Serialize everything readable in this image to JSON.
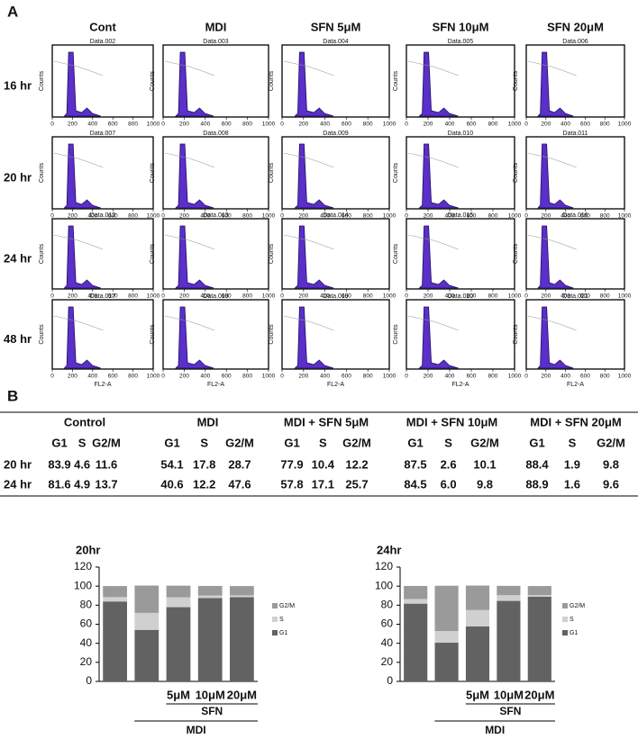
{
  "panel_a": {
    "label": "A",
    "columns": [
      "Cont",
      "MDI",
      "SFN 5μM",
      "SFN 10μM",
      "SFN 20μM"
    ],
    "rows": [
      "16 hr",
      "20 hr",
      "24 hr",
      "48 hr"
    ],
    "samples": [
      [
        "Data.002",
        "Data.003",
        "Data.004",
        "Data.005",
        "Data.006"
      ],
      [
        "Data.007",
        "Data.008",
        "Data.009",
        "Data.010",
        "Data.011"
      ],
      [
        "Data.012",
        "Data.013",
        "Data.014",
        "Data.015",
        "Data.016"
      ],
      [
        "Data.017",
        "Data.018",
        "Data.019",
        "Data.020",
        "Data.021"
      ]
    ],
    "y_label": "Counts",
    "x_label": "FL2-A",
    "xticks": [
      0,
      200,
      400,
      600,
      800,
      1000
    ]
  },
  "panel_b": {
    "label": "B",
    "groups": [
      "Control",
      "MDI",
      "MDI + SFN 5μM",
      "MDI + SFN 10μM",
      "MDI + SFN 20μM"
    ],
    "subheaders": [
      "G1",
      "S",
      "G2/M"
    ],
    "rows": [
      {
        "label": "20 hr",
        "cells": [
          "83.9",
          "4.6",
          "11.6",
          "54.1",
          "17.8",
          "28.7",
          "77.9",
          "10.4",
          "12.2",
          "87.5",
          "2.6",
          "10.1",
          "88.4",
          "1.9",
          "9.8"
        ]
      },
      {
        "label": "24 hr",
        "cells": [
          "81.6",
          "4.9",
          "13.7",
          "40.6",
          "12.2",
          "47.6",
          "57.8",
          "17.1",
          "25.7",
          "84.5",
          "6.0",
          "9.8",
          "88.9",
          "1.6",
          "9.6"
        ]
      }
    ]
  },
  "chart_data": [
    {
      "type": "stacked_bar",
      "title": "20hr",
      "categories": [
        null,
        null,
        "5μM",
        "10μM",
        "20μM"
      ],
      "group_labels": [
        "SFN",
        "MDI"
      ],
      "series": [
        {
          "name": "G1",
          "color": "#626262",
          "values": [
            83.9,
            54.1,
            77.9,
            87.5,
            88.4
          ]
        },
        {
          "name": "S",
          "color": "#d0d0d0",
          "values": [
            4.6,
            17.8,
            10.4,
            2.6,
            1.9
          ]
        },
        {
          "name": "G2/M",
          "color": "#9a9a9a",
          "values": [
            11.6,
            28.7,
            12.2,
            10.1,
            9.8
          ]
        }
      ],
      "ylim": [
        0,
        120
      ],
      "yticks": [
        0,
        20,
        40,
        60,
        80,
        100,
        120
      ]
    },
    {
      "type": "stacked_bar",
      "title": "24hr",
      "categories": [
        null,
        null,
        "5μM",
        "10μM",
        "20μM"
      ],
      "group_labels": [
        "SFN",
        "MDI"
      ],
      "series": [
        {
          "name": "G1",
          "color": "#626262",
          "values": [
            81.6,
            40.6,
            57.8,
            84.5,
            88.9
          ]
        },
        {
          "name": "S",
          "color": "#d0d0d0",
          "values": [
            4.9,
            12.2,
            17.1,
            6.0,
            1.6
          ]
        },
        {
          "name": "G2/M",
          "color": "#9a9a9a",
          "values": [
            13.7,
            47.6,
            25.7,
            9.8,
            9.6
          ]
        }
      ],
      "ylim": [
        0,
        120
      ],
      "yticks": [
        0,
        20,
        40,
        60,
        80,
        100,
        120
      ]
    }
  ]
}
